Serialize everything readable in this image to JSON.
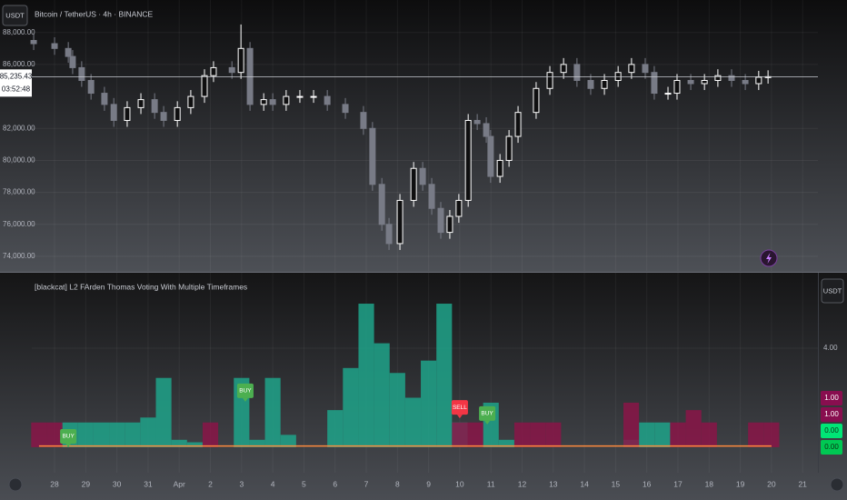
{
  "ui": {
    "currency_button": "USDT",
    "indicator_currency_button": "USDT"
  },
  "chart_data": [
    {
      "type": "candlestick",
      "title": "Bitcoin / TetherUS · 4h · BINANCE",
      "x": [
        -0.67,
        0,
        0.44,
        0.58,
        0.87,
        1.17,
        1.6,
        1.9,
        2.33,
        2.77,
        3.21,
        3.5,
        3.94,
        4.37,
        4.81,
        5.1,
        5.69,
        5.98,
        6.27,
        6.71,
        7.0,
        7.43,
        7.87,
        8.31,
        8.75,
        9.33,
        9.91,
        10.2,
        10.5,
        10.73,
        11.08,
        11.52,
        11.81,
        12.1,
        12.39,
        12.68,
        12.97,
        13.27,
        13.56,
        13.85,
        13.99,
        14.29,
        14.58,
        14.87,
        15.45,
        15.89,
        16.33,
        16.76,
        17.2,
        17.64,
        18.08,
        18.51,
        18.95,
        19.24,
        19.68,
        19.97,
        20.41,
        20.85,
        21.28,
        21.72,
        22.16,
        22.59,
        22.89
      ],
      "open": [
        87500,
        87300,
        87000,
        86500,
        85800,
        85000,
        84200,
        83500,
        82500,
        83300,
        83800,
        83000,
        82500,
        83300,
        84000,
        85300,
        85800,
        85500,
        87000,
        83500,
        83800,
        83500,
        84000,
        84000,
        84000,
        83500,
        83000,
        82000,
        78500,
        76000,
        74800,
        77500,
        79500,
        78500,
        77000,
        75500,
        76500,
        77500,
        82500,
        82300,
        81500,
        79000,
        80000,
        81500,
        83000,
        84500,
        85500,
        86000,
        85000,
        84500,
        85000,
        85500,
        86000,
        85500,
        84200,
        84200,
        85000,
        84800,
        85000,
        85300,
        85000,
        84800,
        85200
      ],
      "high": [
        87900,
        87700,
        87400,
        86900,
        86200,
        85400,
        84600,
        83900,
        83700,
        84200,
        84200,
        83400,
        83700,
        84400,
        85700,
        86200,
        86200,
        88500,
        87400,
        84200,
        84200,
        84400,
        84400,
        84400,
        84400,
        83900,
        83400,
        82400,
        78900,
        76400,
        77900,
        79900,
        79900,
        78900,
        77400,
        76900,
        77900,
        82900,
        82900,
        82700,
        81900,
        80400,
        81900,
        83400,
        84900,
        85900,
        86400,
        86400,
        85400,
        85400,
        85900,
        86400,
        86400,
        85900,
        84600,
        85400,
        85400,
        85400,
        85700,
        85700,
        85400,
        85600,
        85635
      ],
      "low": [
        86900,
        86600,
        86100,
        85400,
        84600,
        83800,
        83100,
        82100,
        82100,
        82900,
        82600,
        82100,
        82100,
        82900,
        83600,
        84900,
        85100,
        85100,
        83100,
        83100,
        83100,
        83100,
        83600,
        83600,
        83100,
        82600,
        81600,
        78100,
        75600,
        74400,
        74400,
        77100,
        78100,
        76600,
        75100,
        75100,
        76100,
        77100,
        81900,
        81100,
        78600,
        78600,
        79600,
        81100,
        82600,
        84100,
        85100,
        84600,
        84100,
        84100,
        84600,
        85100,
        85100,
        83800,
        83800,
        83800,
        84400,
        84400,
        84600,
        84600,
        84400,
        84400,
        84800
      ],
      "close": [
        87300,
        87000,
        86500,
        85800,
        85000,
        84200,
        83500,
        82500,
        83300,
        83800,
        83000,
        82500,
        83300,
        84000,
        85300,
        85800,
        85500,
        87000,
        83500,
        83800,
        83500,
        84000,
        84000,
        84000,
        83500,
        83000,
        82000,
        78500,
        76000,
        74800,
        77500,
        79500,
        78500,
        77000,
        75500,
        76500,
        77500,
        82500,
        82300,
        81500,
        79000,
        80000,
        81500,
        83000,
        84500,
        85500,
        86000,
        85000,
        84500,
        85000,
        85500,
        86000,
        85500,
        84200,
        84200,
        85000,
        84800,
        85000,
        85300,
        85000,
        84800,
        85200,
        85235.43
      ],
      "up_color": "#ffffff",
      "down_color": "#787b86",
      "xlim": [
        -0.73,
        24.49
      ],
      "ylim": [
        73090,
        90030
      ],
      "yticks": [
        {
          "value": 74000,
          "label": "74,000.00"
        },
        {
          "value": 76000,
          "label": "76,000.00"
        },
        {
          "value": 78000,
          "label": "78,000.00"
        },
        {
          "value": 80000,
          "label": "80,000.00"
        },
        {
          "value": 82000,
          "label": "82,000.00"
        },
        {
          "value": 86000,
          "label": "86,000.00"
        },
        {
          "value": 88000,
          "label": "88,000.00"
        }
      ],
      "last_price": 85235.43,
      "last_price_label": "85,235.43",
      "countdown": "03:52:48",
      "grid": true
    },
    {
      "type": "area",
      "title": "[blackcat] L2 FArden Thomas Voting With Multiple Timeframes",
      "x": [
        -0.5,
        0,
        0.5,
        1,
        1.5,
        2,
        2.5,
        3,
        3.5,
        4,
        4.5,
        5,
        5.5,
        6,
        6.5,
        7,
        7.5,
        8,
        8.5,
        9,
        9.5,
        10,
        10.5,
        11,
        11.5,
        12,
        12.5,
        13,
        13.5,
        14,
        14.5,
        15,
        15.5,
        16,
        16.5,
        17,
        17.5,
        18,
        18.5,
        19,
        19.5,
        20,
        20.5,
        21,
        21.5,
        22,
        22.5,
        23
      ],
      "series": [
        {
          "color": "#1fa38a",
          "values": [
            0,
            0,
            1,
            1,
            1,
            1,
            1,
            1.2,
            2.8,
            0.3,
            0.2,
            0,
            0,
            2.8,
            0.3,
            2.8,
            0.5,
            0,
            0,
            1.5,
            3.2,
            5.8,
            4.2,
            3.0,
            2.0,
            3.5,
            5.8,
            1.0,
            0,
            1.8,
            0.3,
            0,
            0,
            0,
            0,
            0,
            0,
            0,
            0.3,
            1,
            1,
            0,
            0,
            0,
            0,
            0,
            0,
            0
          ]
        },
        {
          "color": "#8a1548",
          "values": [
            1,
            1,
            0,
            0,
            0,
            0,
            0,
            0,
            0,
            0,
            0,
            1,
            0,
            0,
            0,
            0,
            0,
            0,
            0,
            0,
            0,
            0,
            0,
            0,
            0,
            0,
            0,
            1,
            1,
            0,
            0,
            1,
            1,
            1,
            0,
            0,
            0,
            0,
            1.8,
            0,
            0,
            1,
            1.5,
            1,
            0,
            0,
            1,
            1
          ]
        },
        {
          "color": "#ff8a3d",
          "values": [
            0.05,
            0.05,
            0.05,
            0.05,
            0.05,
            0.05,
            0.05,
            0.05,
            0.05,
            0.05,
            0.05,
            0.05,
            0.05,
            0.05,
            0.05,
            0.05,
            0.05,
            0.05,
            0.05,
            0.05,
            0.05,
            0.05,
            0.05,
            0.05,
            0.05,
            0.05,
            0.05,
            0.05,
            0.05,
            0.05,
            0.05,
            0.05,
            0.05,
            0.05,
            0.05,
            0.05,
            0.05,
            0.05,
            0.05,
            0.05,
            0.05,
            0.05,
            0.05,
            0.05,
            0.05,
            0.05,
            0.05,
            0.05
          ]
        }
      ],
      "xlim": [
        -0.73,
        24.49
      ],
      "ylim": [
        -1.03,
        7.05
      ],
      "yticks": [
        {
          "value": 4,
          "label": "4.00"
        }
      ],
      "xticks": [
        {
          "value": 0,
          "label": "28"
        },
        {
          "value": 1,
          "label": "29"
        },
        {
          "value": 2,
          "label": "30"
        },
        {
          "value": 3,
          "label": "31"
        },
        {
          "value": 4,
          "label": "Apr"
        },
        {
          "value": 5,
          "label": "2"
        },
        {
          "value": 6,
          "label": "3"
        },
        {
          "value": 7,
          "label": "4"
        },
        {
          "value": 8,
          "label": "5"
        },
        {
          "value": 9,
          "label": "6"
        },
        {
          "value": 10,
          "label": "7"
        },
        {
          "value": 11,
          "label": "8"
        },
        {
          "value": 12,
          "label": "9"
        },
        {
          "value": 13,
          "label": "10"
        },
        {
          "value": 14,
          "label": "11"
        },
        {
          "value": 15,
          "label": "12"
        },
        {
          "value": 16,
          "label": "13"
        },
        {
          "value": 17,
          "label": "14"
        },
        {
          "value": 18,
          "label": "15"
        },
        {
          "value": 19,
          "label": "16"
        },
        {
          "value": 20,
          "label": "17"
        },
        {
          "value": 21,
          "label": "18"
        },
        {
          "value": 22,
          "label": "19"
        },
        {
          "value": 23,
          "label": "20"
        },
        {
          "value": 24,
          "label": "21"
        }
      ],
      "value_badges": [
        {
          "value": 1,
          "label": "1.00",
          "color": "#880e4f"
        },
        {
          "value": 1,
          "label": "1.00",
          "color": "#880e4f"
        },
        {
          "value": 0,
          "label": "0.00",
          "color": "#00e676"
        },
        {
          "value": 0,
          "label": "0.00",
          "color": "#00c853"
        }
      ],
      "signals": [
        {
          "x": 0.44,
          "y": 0.44,
          "label": "BUY",
          "color": "#4caf50"
        },
        {
          "x": 6.12,
          "y": 2.28,
          "label": "BUY",
          "color": "#4caf50"
        },
        {
          "x": 13.0,
          "y": 1.61,
          "label": "SELL",
          "color": "#f23645"
        },
        {
          "x": 13.88,
          "y": 1.36,
          "label": "BUY",
          "color": "#4caf50"
        }
      ],
      "grid": true
    }
  ]
}
